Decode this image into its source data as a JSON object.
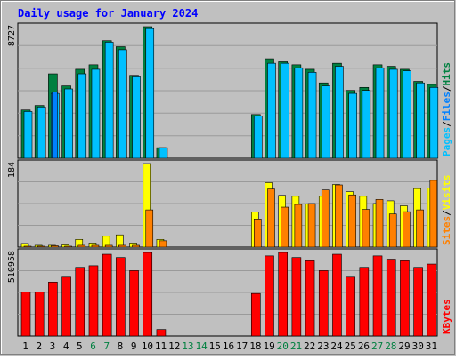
{
  "chart_data": {
    "title": "Daily usage for January 2024",
    "type": "bar",
    "days": [
      "1",
      "2",
      "3",
      "4",
      "5",
      "6",
      "7",
      "8",
      "9",
      "10",
      "11",
      "12",
      "13",
      "14",
      "15",
      "16",
      "17",
      "18",
      "19",
      "20",
      "21",
      "22",
      "23",
      "24",
      "25",
      "26",
      "27",
      "28",
      "29",
      "30",
      "31"
    ],
    "weekend_days": [
      "6",
      "7",
      "13",
      "14",
      "20",
      "21",
      "27",
      "28"
    ],
    "colors": {
      "background": "#c0c0c0",
      "title": "#0000ff",
      "hits": "#008040",
      "files": "#00c0ff",
      "pages": "#0080ff",
      "visits": "#ffff00",
      "sites": "#ff8000",
      "kbytes": "#ff0000",
      "weekend_label": "#008040",
      "weekday_label": "#000000"
    },
    "panels": [
      {
        "id": "hits-files-pages",
        "max_label": "8727",
        "ylim": [
          0,
          8727
        ],
        "legend": [
          {
            "label": "Pages",
            "color": "#00c0ff"
          },
          {
            "label": "Files",
            "color": "#0080ff"
          },
          {
            "label": "Hits",
            "color": "#008040"
          }
        ],
        "series": [
          {
            "name": "Hits",
            "values": [
              3200,
              3500,
              5600,
              4800,
              5900,
              6200,
              7800,
              7400,
              5500,
              8727,
              700,
              0,
              0,
              0,
              0,
              0,
              0,
              2900,
              6600,
              6400,
              6200,
              5900,
              5000,
              6300,
              4500,
              4700,
              6200,
              6100,
              5900,
              5100,
              4900
            ]
          },
          {
            "name": "Files",
            "values": [
              3100,
              3400,
              4300,
              4600,
              5600,
              5900,
              7700,
              7200,
              5400,
              8600,
              700,
              0,
              0,
              0,
              0,
              0,
              0,
              2800,
              6300,
              6300,
              6000,
              5700,
              4800,
              6100,
              4300,
              4500,
              6000,
              5900,
              5800,
              5000,
              4700
            ]
          },
          {
            "name": "Pages",
            "values": [
              0,
              0,
              4400,
              0,
              0,
              0,
              0,
              0,
              0,
              0,
              0,
              0,
              0,
              0,
              0,
              0,
              0,
              0,
              0,
              0,
              0,
              0,
              0,
              0,
              0,
              0,
              0,
              0,
              0,
              0,
              0
            ]
          }
        ]
      },
      {
        "id": "visits-sites",
        "max_label": "184",
        "ylim": [
          0,
          184
        ],
        "legend": [
          {
            "label": "Sites",
            "color": "#ff8000"
          },
          {
            "label": "Visits",
            "color": "#ffff00"
          }
        ],
        "series": [
          {
            "name": "Visits",
            "values": [
              8,
              4,
              4,
              5,
              17,
              9,
              24,
              27,
              9,
              184,
              17,
              0,
              0,
              0,
              0,
              0,
              0,
              77,
              142,
              114,
              112,
              95,
              112,
              138,
              122,
              112,
              96,
              102,
              91,
              129,
              130
            ]
          },
          {
            "name": "Sites",
            "values": [
              2,
              2,
              3,
              2,
              4,
              4,
              4,
              4,
              4,
              82,
              14,
              0,
              0,
              0,
              0,
              0,
              0,
              62,
              128,
              88,
              94,
              96,
              126,
              137,
              115,
              83,
              105,
              73,
              78,
              82,
              147
            ]
          }
        ]
      },
      {
        "id": "kbytes",
        "max_label": "510958",
        "ylim": [
          0,
          510958
        ],
        "legend": [
          {
            "label": "KBytes",
            "color": "#ff0000"
          }
        ],
        "series": [
          {
            "name": "KBytes",
            "values": [
              270000,
              270000,
              330000,
              360000,
              420000,
              430000,
              500000,
              480000,
              400000,
              510958,
              40000,
              0,
              0,
              0,
              0,
              0,
              0,
              260000,
              490000,
              510958,
              480000,
              460000,
              400000,
              500000,
              360000,
              420000,
              490000,
              470000,
              460000,
              420000,
              440000
            ]
          }
        ]
      }
    ]
  }
}
